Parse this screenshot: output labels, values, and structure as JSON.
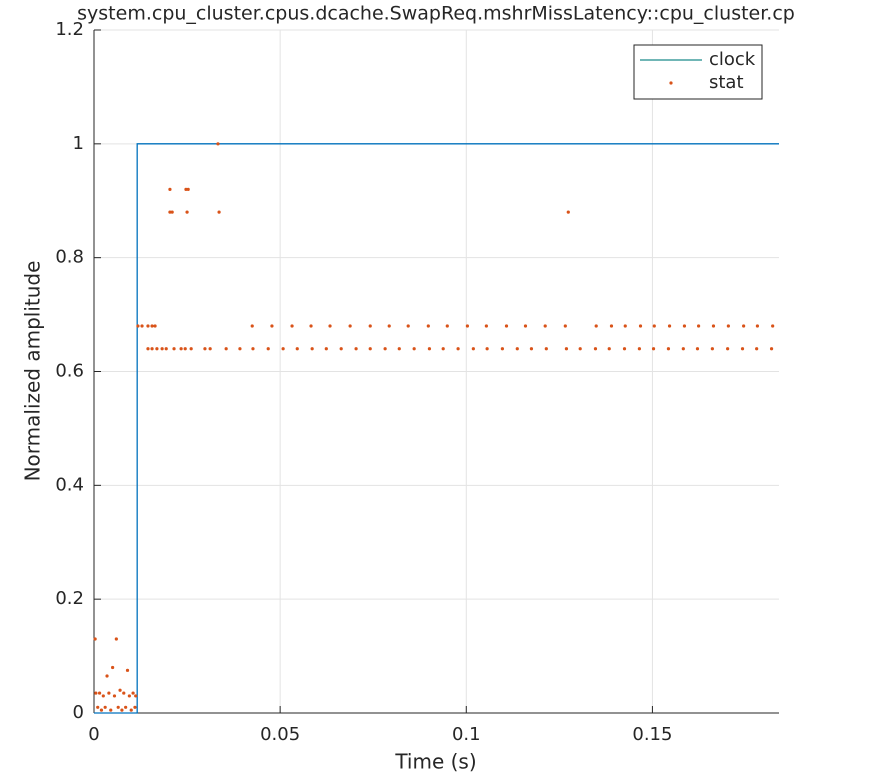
{
  "chart_data": {
    "type": "line",
    "title": "system.cpu_cluster.cpus.dcache.SwapReq.mshrMissLatency::cpu_cluster.cp",
    "xlabel": "Time (s)",
    "ylabel": "Normalized amplitude",
    "xlim": [
      0,
      0.184
    ],
    "ylim": [
      0,
      1.2
    ],
    "xticks": [
      0,
      0.05,
      0.1,
      0.15
    ],
    "yticks": [
      0,
      0.2,
      0.4,
      0.6,
      0.8,
      1,
      1.2
    ],
    "grid": true,
    "legend": "top-right",
    "series": [
      {
        "name": "clock",
        "color": "#0072bd",
        "legend_color": "#1a8a8a",
        "style": "line",
        "x": [
          0,
          0.0116,
          0.0116,
          0.184
        ],
        "values": [
          0,
          0,
          1,
          1
        ]
      },
      {
        "name": "stat",
        "color": "#d95319",
        "style": "marker",
        "x": [
          0.0003,
          0.0005,
          0.001,
          0.0015,
          0.002,
          0.0025,
          0.003,
          0.0035,
          0.004,
          0.0045,
          0.005,
          0.0055,
          0.006,
          0.0065,
          0.007,
          0.0075,
          0.008,
          0.0085,
          0.009,
          0.0095,
          0.01,
          0.0105,
          0.011,
          0.0112,
          0.0118,
          0.0129,
          0.0145,
          0.0156,
          0.0164,
          0.0425,
          0.0478,
          0.0532,
          0.0583,
          0.0634,
          0.0688,
          0.0742,
          0.0793,
          0.0844,
          0.0898,
          0.0949,
          0.1003,
          0.1054,
          0.1108,
          0.1159,
          0.1212,
          0.1266,
          0.1349,
          0.139,
          0.1427,
          0.1468,
          0.1505,
          0.1546,
          0.1586,
          0.1624,
          0.1664,
          0.1704,
          0.1745,
          0.1782,
          0.1823,
          0.0145,
          0.0156,
          0.0169,
          0.0183,
          0.0194,
          0.0215,
          0.0234,
          0.0245,
          0.0261,
          0.0298,
          0.0312,
          0.0355,
          0.0392,
          0.0427,
          0.0468,
          0.0508,
          0.0546,
          0.0586,
          0.0624,
          0.0664,
          0.0704,
          0.0742,
          0.0782,
          0.082,
          0.086,
          0.0901,
          0.0938,
          0.0978,
          0.1019,
          0.1056,
          0.1097,
          0.1137,
          0.1175,
          0.1215,
          0.1269,
          0.1306,
          0.1347,
          0.1384,
          0.1425,
          0.1465,
          0.1503,
          0.1543,
          0.1583,
          0.1621,
          0.1661,
          0.1702,
          0.1742,
          0.178,
          0.182,
          0.0204,
          0.0204,
          0.021,
          0.0247,
          0.0253,
          0.025,
          0.0336,
          0.0333,
          0.1274
        ],
        "values": [
          0.13,
          0.035,
          0.01,
          0.035,
          0.005,
          0.03,
          0.01,
          0.065,
          0.035,
          0.005,
          0.08,
          0.03,
          0.13,
          0.01,
          0.04,
          0.005,
          0.035,
          0.01,
          0.075,
          0.03,
          0.005,
          0.035,
          0.01,
          0.03,
          0.68,
          0.68,
          0.68,
          0.68,
          0.68,
          0.68,
          0.68,
          0.68,
          0.68,
          0.68,
          0.68,
          0.68,
          0.68,
          0.68,
          0.68,
          0.68,
          0.68,
          0.68,
          0.68,
          0.68,
          0.68,
          0.68,
          0.68,
          0.68,
          0.68,
          0.68,
          0.68,
          0.68,
          0.68,
          0.68,
          0.68,
          0.68,
          0.68,
          0.68,
          0.68,
          0.64,
          0.64,
          0.64,
          0.64,
          0.64,
          0.64,
          0.64,
          0.64,
          0.64,
          0.64,
          0.64,
          0.64,
          0.64,
          0.64,
          0.64,
          0.64,
          0.64,
          0.64,
          0.64,
          0.64,
          0.64,
          0.64,
          0.64,
          0.64,
          0.64,
          0.64,
          0.64,
          0.64,
          0.64,
          0.64,
          0.64,
          0.64,
          0.64,
          0.64,
          0.64,
          0.64,
          0.64,
          0.64,
          0.64,
          0.64,
          0.64,
          0.64,
          0.64,
          0.64,
          0.64,
          0.64,
          0.64,
          0.64,
          0.64,
          0.92,
          0.88,
          0.88,
          0.92,
          0.92,
          0.88,
          0.88,
          1.0,
          0.88
        ]
      }
    ]
  }
}
